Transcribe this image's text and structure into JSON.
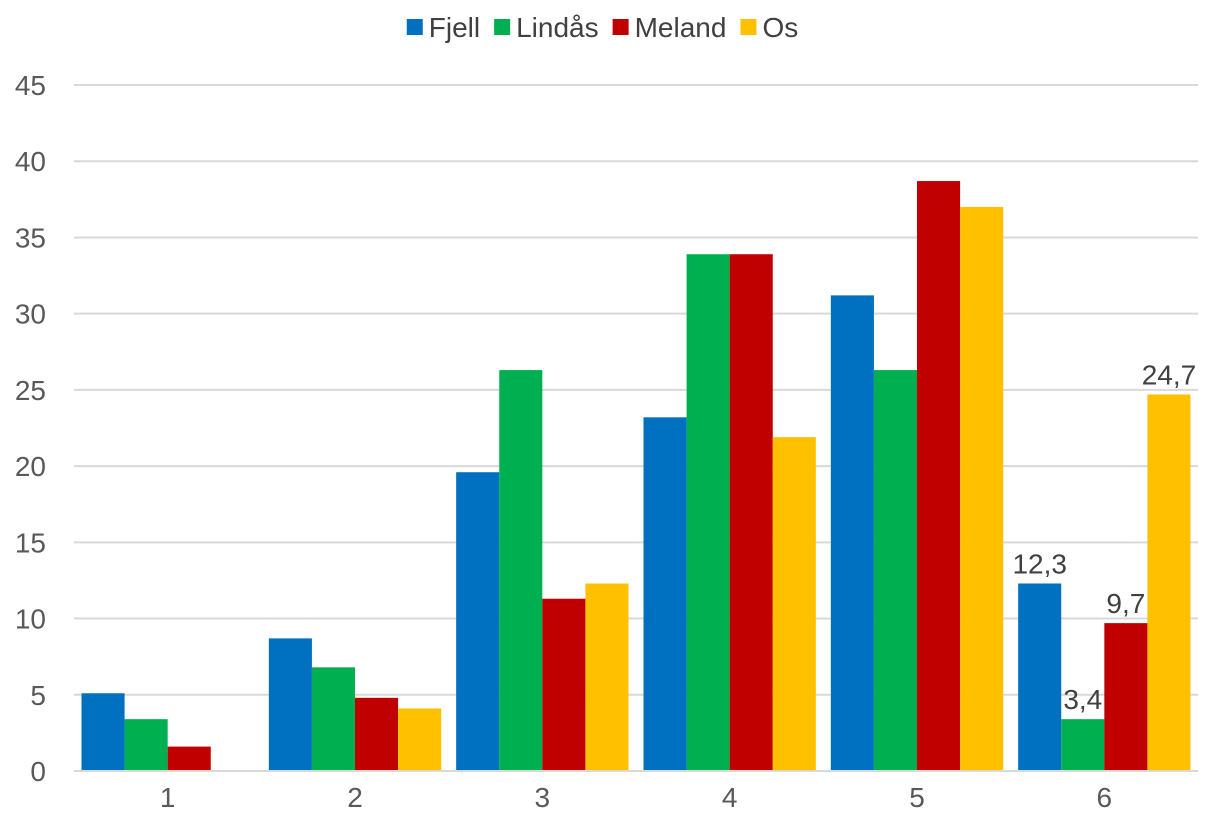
{
  "chart_data": {
    "type": "bar",
    "title": "",
    "xlabel": "",
    "ylabel": "",
    "categories": [
      "1",
      "2",
      "3",
      "4",
      "5",
      "6"
    ],
    "ylim": [
      0,
      45
    ],
    "yticks": [
      0,
      5,
      10,
      15,
      20,
      25,
      30,
      35,
      40,
      45
    ],
    "grid": true,
    "legend_position": "top",
    "series": [
      {
        "name": "Fjell",
        "color": "#0070C0",
        "values": [
          5.1,
          8.7,
          19.6,
          23.2,
          31.2,
          12.3
        ]
      },
      {
        "name": "Lindås",
        "color": "#00B050",
        "values": [
          3.4,
          6.8,
          26.3,
          33.9,
          26.3,
          3.4
        ]
      },
      {
        "name": "Meland",
        "color": "#C00000",
        "values": [
          1.6,
          4.8,
          11.3,
          33.9,
          38.7,
          9.7
        ]
      },
      {
        "name": "Os",
        "color": "#FFC000",
        "values": [
          0,
          4.1,
          12.3,
          21.9,
          37.0,
          24.7
        ]
      }
    ],
    "data_labels": [
      {
        "series": "Fjell",
        "category": "6",
        "text": "12,3"
      },
      {
        "series": "Lindås",
        "category": "6",
        "text": "3,4"
      },
      {
        "series": "Meland",
        "category": "6",
        "text": "9,7"
      },
      {
        "series": "Os",
        "category": "6",
        "text": "24,7"
      }
    ]
  }
}
